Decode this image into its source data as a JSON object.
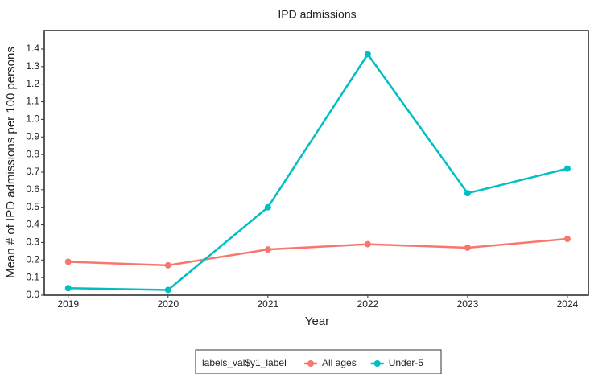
{
  "chart_data": {
    "type": "line",
    "title": "IPD admissions",
    "x_label": "Year",
    "y_label": "Mean # of IPD admissions per 100 persons",
    "x": [
      2019,
      2020,
      2021,
      2022,
      2023,
      2024
    ],
    "series": [
      {
        "name": "All ages",
        "color": "#f8766d",
        "values": [
          0.19,
          0.17,
          0.26,
          0.29,
          0.27,
          0.32
        ]
      },
      {
        "name": "Under-5",
        "color": "#00bfc4",
        "values": [
          0.04,
          0.03,
          0.5,
          1.37,
          0.58,
          0.72
        ]
      }
    ],
    "legend_title": "labels_val$y1_label",
    "legend_position": "bottom",
    "xlim": [
      2018.76,
      2024.21
    ],
    "xticks": [
      2019,
      2020,
      2021,
      2022,
      2023,
      2024
    ],
    "ylim": [
      0,
      1.505
    ],
    "yticks": [
      {
        "value": 0,
        "label": "0.0"
      },
      0.1,
      0.2,
      0.3,
      0.4,
      0.5,
      0.6,
      0.7,
      0.8,
      0.9,
      {
        "value": 1,
        "label": "1.0"
      },
      1.1,
      1.2,
      1.3,
      1.4
    ],
    "grid": false
  }
}
